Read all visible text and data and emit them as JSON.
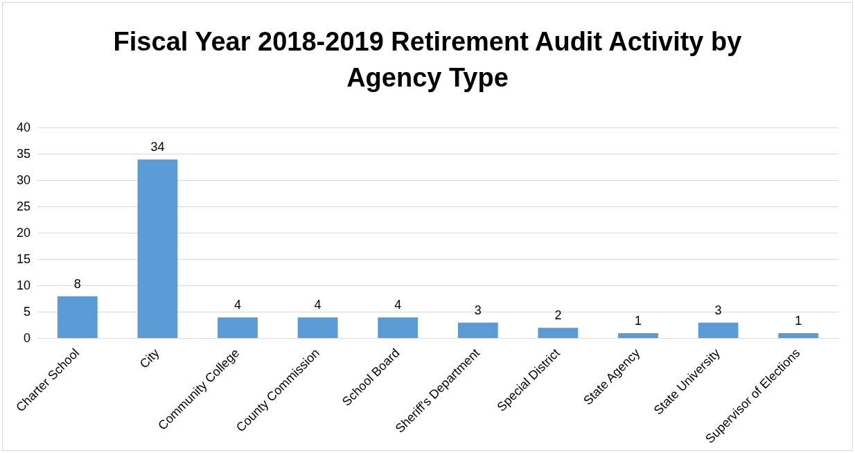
{
  "chart_data": {
    "type": "bar",
    "title": "Fiscal Year 2018-2019 Retirement Audit Activity by Agency Type",
    "categories": [
      "Charter School",
      "City",
      "Community College",
      "County Commission",
      "School Board",
      "Sheriff's Department",
      "Special District",
      "State Agency",
      "State University",
      "Supervisor of Elections"
    ],
    "values": [
      8,
      34,
      4,
      4,
      4,
      3,
      2,
      1,
      3,
      1
    ],
    "color": "#5b9bd5",
    "ylim": [
      0,
      40
    ],
    "yticks": [
      0,
      5,
      10,
      15,
      20,
      25,
      30,
      35,
      40
    ],
    "grid": "y",
    "legend": false,
    "data_labels": true
  }
}
